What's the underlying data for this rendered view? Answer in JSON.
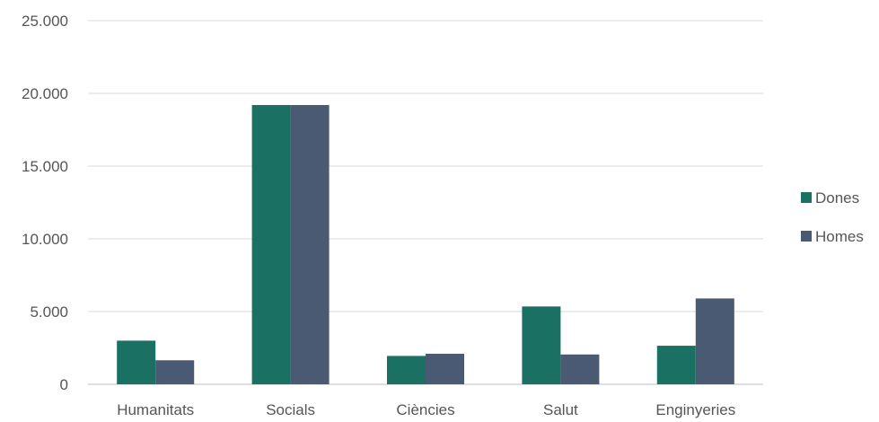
{
  "chart_data": {
    "type": "bar",
    "title": "",
    "xlabel": "",
    "ylabel": "",
    "categories": [
      "Humanitats",
      "Socials",
      "Ciències",
      "Salut",
      "Enginyeries"
    ],
    "series": [
      {
        "name": "Dones",
        "color": "#1a7063",
        "values": [
          3000,
          19200,
          1950,
          5350,
          2650
        ]
      },
      {
        "name": "Homes",
        "color": "#4a5a72",
        "values": [
          1650,
          19200,
          2100,
          2050,
          5900
        ]
      }
    ],
    "ylim": [
      0,
      25000
    ],
    "yticks": [
      0,
      5000,
      10000,
      15000,
      20000,
      25000
    ],
    "ytick_labels": [
      "0",
      "5.000",
      "10.000",
      "15.000",
      "20.000",
      "25.000"
    ],
    "grid": true,
    "legend_position": "right",
    "gridline_color": "#d9d9d9",
    "axis_color": "#bfbfbf"
  }
}
